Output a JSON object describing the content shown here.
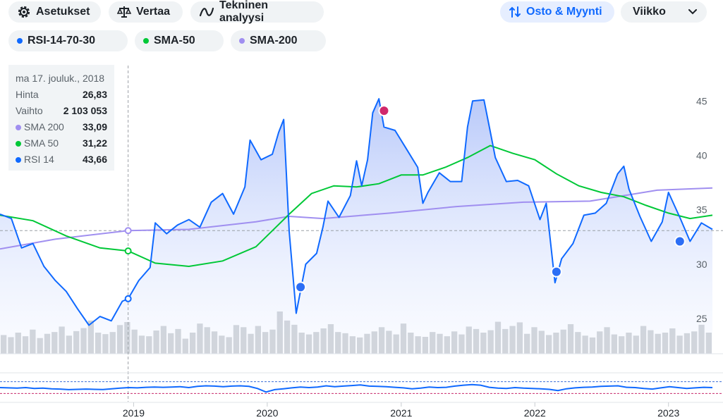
{
  "toolbar": {
    "settings": "Asetukset",
    "compare": "Vertaa",
    "technical": "Tekninen analyysi",
    "buy_sell": "Osto & Myynti",
    "period": "Viikko"
  },
  "indicators": [
    {
      "label": "RSI-14-70-30",
      "color": "#0f69ff"
    },
    {
      "label": "SMA-50",
      "color": "#00c837"
    },
    {
      "label": "SMA-200",
      "color": "#a08ff0"
    }
  ],
  "tooltip": {
    "date": "ma 17. jouluk., 2018",
    "price_label": "Hinta",
    "price": "26,83",
    "volume_label": "Vaihto",
    "volume": "2 103 053",
    "sma200_label": "SMA 200",
    "sma200": "33,09",
    "sma50_label": "SMA 50",
    "sma50": "31,22",
    "rsi_label": "RSI 14",
    "rsi": "43,66"
  },
  "chart_data": {
    "type": "line",
    "x_range": [
      "2018-01-01",
      "2023-05-01"
    ],
    "x_ticks": [
      "2019",
      "2020",
      "2021",
      "2022",
      "2023"
    ],
    "y_ticks": [
      25,
      30,
      35,
      40,
      45
    ],
    "ylim": [
      23.2,
      47.8
    ],
    "crosshair": {
      "date": "2018-12-17",
      "price": 33.09
    },
    "series": [
      {
        "name": "Hinta",
        "color": "#0f69ff",
        "data": [
          [
            "2018-01-01",
            34.6
          ],
          [
            "2018-02-01",
            34.2
          ],
          [
            "2018-03-01",
            31.5
          ],
          [
            "2018-04-01",
            31.9
          ],
          [
            "2018-05-01",
            29.8
          ],
          [
            "2018-06-01",
            28.5
          ],
          [
            "2018-07-01",
            27.5
          ],
          [
            "2018-08-01",
            25.9
          ],
          [
            "2018-09-01",
            24.4
          ],
          [
            "2018-10-01",
            25.2
          ],
          [
            "2018-11-01",
            24.8
          ],
          [
            "2018-12-01",
            26.6
          ],
          [
            "2018-12-17",
            26.83
          ],
          [
            "2019-01-15",
            28.5
          ],
          [
            "2019-02-15",
            29.7
          ],
          [
            "2019-03-01",
            33.8
          ],
          [
            "2019-04-01",
            32.8
          ],
          [
            "2019-05-01",
            33.6
          ],
          [
            "2019-06-01",
            34.1
          ],
          [
            "2019-07-01",
            33.4
          ],
          [
            "2019-08-01",
            35.7
          ],
          [
            "2019-09-01",
            36.5
          ],
          [
            "2019-10-01",
            34.6
          ],
          [
            "2019-11-01",
            37.1
          ],
          [
            "2019-11-15",
            41.4
          ],
          [
            "2019-12-15",
            39.6
          ],
          [
            "2020-01-15",
            40.1
          ],
          [
            "2020-02-01",
            42.1
          ],
          [
            "2020-02-15",
            43.3
          ],
          [
            "2020-03-01",
            33.0
          ],
          [
            "2020-03-20",
            25.5
          ],
          [
            "2020-04-15",
            30.0
          ],
          [
            "2020-05-15",
            31.0
          ],
          [
            "2020-06-01",
            33.4
          ],
          [
            "2020-06-15",
            35.8
          ],
          [
            "2020-07-15",
            34.3
          ],
          [
            "2020-08-15",
            36.3
          ],
          [
            "2020-09-01",
            39.5
          ],
          [
            "2020-09-15",
            37.2
          ],
          [
            "2020-10-01",
            39.6
          ],
          [
            "2020-10-15",
            43.9
          ],
          [
            "2020-11-01",
            45.2
          ],
          [
            "2020-11-15",
            42.6
          ],
          [
            "2020-12-15",
            42.3
          ],
          [
            "2021-01-15",
            40.6
          ],
          [
            "2021-02-15",
            38.9
          ],
          [
            "2021-03-01",
            35.6
          ],
          [
            "2021-03-15",
            36.6
          ],
          [
            "2021-04-15",
            38.4
          ],
          [
            "2021-05-15",
            37.6
          ],
          [
            "2021-06-15",
            37.6
          ],
          [
            "2021-07-01",
            42.6
          ],
          [
            "2021-07-15",
            45.0
          ],
          [
            "2021-08-15",
            45.1
          ],
          [
            "2021-09-01",
            42.2
          ],
          [
            "2021-09-15",
            39.8
          ],
          [
            "2021-10-15",
            37.6
          ],
          [
            "2021-11-15",
            37.7
          ],
          [
            "2021-12-15",
            37.2
          ],
          [
            "2022-01-15",
            34.1
          ],
          [
            "2022-02-01",
            35.6
          ],
          [
            "2022-02-25",
            28.3
          ],
          [
            "2022-03-15",
            30.5
          ],
          [
            "2022-04-15",
            31.9
          ],
          [
            "2022-05-15",
            34.5
          ],
          [
            "2022-06-15",
            34.7
          ],
          [
            "2022-07-15",
            35.6
          ],
          [
            "2022-08-15",
            38.3
          ],
          [
            "2022-09-01",
            39.0
          ],
          [
            "2022-09-15",
            36.9
          ],
          [
            "2022-10-15",
            34.4
          ],
          [
            "2022-11-15",
            32.1
          ],
          [
            "2022-12-15",
            33.9
          ],
          [
            "2023-01-01",
            36.6
          ],
          [
            "2023-02-01",
            34.3
          ],
          [
            "2023-03-01",
            32.1
          ],
          [
            "2023-04-01",
            33.8
          ],
          [
            "2023-05-01",
            33.2
          ]
        ]
      },
      {
        "name": "SMA 50",
        "color": "#00c837",
        "data": [
          [
            "2018-01-01",
            34.5
          ],
          [
            "2018-04-01",
            34.0
          ],
          [
            "2018-07-01",
            32.6
          ],
          [
            "2018-10-01",
            31.5
          ],
          [
            "2018-12-17",
            31.22
          ],
          [
            "2019-03-01",
            30.1
          ],
          [
            "2019-06-01",
            29.8
          ],
          [
            "2019-09-01",
            30.3
          ],
          [
            "2019-12-01",
            31.6
          ],
          [
            "2020-03-01",
            34.6
          ],
          [
            "2020-05-01",
            36.5
          ],
          [
            "2020-07-01",
            37.2
          ],
          [
            "2020-09-01",
            37.1
          ],
          [
            "2020-11-01",
            37.4
          ],
          [
            "2021-01-01",
            38.2
          ],
          [
            "2021-03-01",
            38.2
          ],
          [
            "2021-05-01",
            38.9
          ],
          [
            "2021-07-01",
            39.8
          ],
          [
            "2021-09-01",
            40.9
          ],
          [
            "2021-11-01",
            40.2
          ],
          [
            "2022-01-01",
            39.6
          ],
          [
            "2022-03-01",
            38.3
          ],
          [
            "2022-05-01",
            37.2
          ],
          [
            "2022-07-01",
            36.6
          ],
          [
            "2022-09-01",
            36.2
          ],
          [
            "2022-11-01",
            35.4
          ],
          [
            "2023-01-01",
            34.7
          ],
          [
            "2023-03-01",
            34.2
          ],
          [
            "2023-05-01",
            34.5
          ]
        ]
      },
      {
        "name": "SMA 200",
        "color": "#a08ff0",
        "data": [
          [
            "2018-01-01",
            31.4
          ],
          [
            "2018-06-01",
            32.3
          ],
          [
            "2018-12-17",
            33.09
          ],
          [
            "2019-06-01",
            33.2
          ],
          [
            "2019-12-01",
            33.9
          ],
          [
            "2020-03-01",
            34.4
          ],
          [
            "2020-06-01",
            34.2
          ],
          [
            "2020-12-01",
            34.7
          ],
          [
            "2021-06-01",
            35.3
          ],
          [
            "2021-12-01",
            35.7
          ],
          [
            "2022-06-01",
            35.8
          ],
          [
            "2022-12-01",
            36.8
          ],
          [
            "2023-05-01",
            37.0
          ]
        ]
      }
    ],
    "signals": [
      {
        "date": "2018-12-17",
        "price": 26.83,
        "type": "crosshair",
        "color": "#0f69ff"
      },
      {
        "date": "2020-04-01",
        "price": 27.9,
        "type": "buy",
        "color": "#2c6ef5"
      },
      {
        "date": "2020-11-15",
        "price": 44.1,
        "type": "sell",
        "color": "#d0286b"
      },
      {
        "date": "2022-03-01",
        "price": 29.3,
        "type": "buy",
        "color": "#2c6ef5"
      },
      {
        "date": "2023-02-01",
        "price": 32.1,
        "type": "buy",
        "color": "#2c6ef5"
      }
    ],
    "volume": [
      62,
      55,
      70,
      58,
      80,
      52,
      66,
      72,
      90,
      60,
      75,
      85,
      110,
      70,
      65,
      72,
      95,
      105,
      80,
      60,
      58,
      77,
      92,
      68,
      82,
      50,
      70,
      100,
      88,
      74,
      60,
      55,
      95,
      88,
      66,
      92,
      72,
      80,
      140,
      110,
      96,
      70,
      64,
      72,
      84,
      98,
      72,
      68,
      58,
      54,
      66,
      74,
      88,
      76,
      64,
      100,
      70,
      58,
      56,
      72,
      66,
      58,
      74,
      64,
      90,
      82,
      70,
      78,
      106,
      82,
      92,
      104,
      66,
      88,
      76,
      62,
      70,
      80,
      98,
      72,
      60,
      54,
      74,
      88,
      64,
      58,
      70,
      60,
      92,
      78,
      66,
      70,
      84,
      60,
      68,
      74,
      96,
      70
    ],
    "rsi": [
      50,
      49,
      48,
      50,
      47,
      48,
      46,
      45,
      43,
      44,
      45,
      44,
      43.66,
      46,
      48,
      50,
      49,
      51,
      52,
      51,
      52,
      53,
      50,
      54,
      56,
      55,
      53,
      55,
      56,
      54,
      47,
      35,
      43,
      46,
      49,
      52,
      50,
      52,
      56,
      53,
      55,
      57,
      59,
      55,
      54,
      53,
      51,
      49,
      46,
      48,
      52,
      50,
      51,
      55,
      58,
      60,
      58,
      51,
      48,
      47,
      50,
      48,
      47,
      46,
      44,
      40,
      46,
      49,
      51,
      52,
      54,
      55,
      56,
      51,
      50,
      47,
      45,
      49,
      53,
      50,
      47,
      49,
      51,
      50
    ]
  }
}
